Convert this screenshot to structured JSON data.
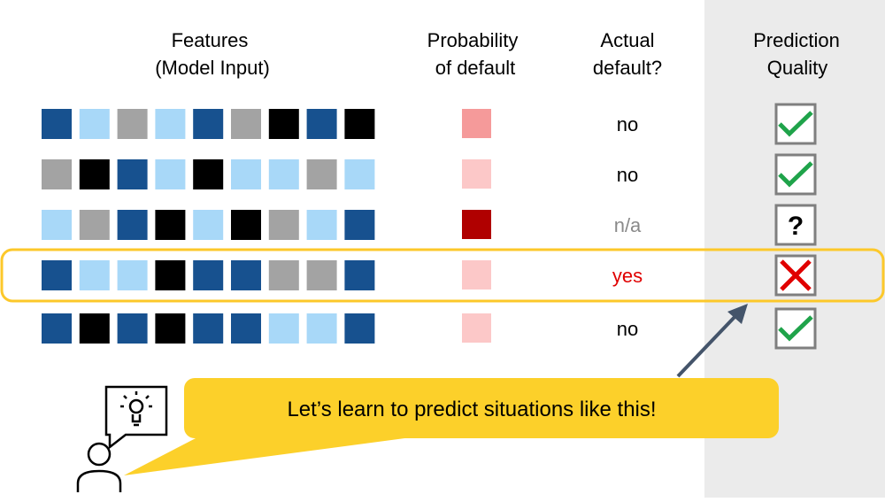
{
  "headers": {
    "features": [
      "Features",
      "(Model Input)"
    ],
    "probability": [
      "Probability",
      "of default"
    ],
    "actual": [
      "Actual",
      "default?"
    ],
    "quality": [
      "Prediction",
      "Quality"
    ]
  },
  "rows": [
    {
      "features": [
        "#17518f",
        "#a8d8f8",
        "#a3a3a3",
        "#a8d8f8",
        "#17518f",
        "#a3a3a3",
        "#000000",
        "#17518f",
        "#000000"
      ],
      "probability_color": "#f59a9a",
      "actual": "no",
      "actual_color": "#000000",
      "quality": "check"
    },
    {
      "features": [
        "#a3a3a3",
        "#000000",
        "#17518f",
        "#a8d8f8",
        "#000000",
        "#a8d8f8",
        "#a8d8f8",
        "#a3a3a3",
        "#a8d8f8"
      ],
      "probability_color": "#fcc8c8",
      "actual": "no",
      "actual_color": "#000000",
      "quality": "check"
    },
    {
      "features": [
        "#a8d8f8",
        "#a3a3a3",
        "#17518f",
        "#000000",
        "#a8d8f8",
        "#000000",
        "#a3a3a3",
        "#a8d8f8",
        "#17518f"
      ],
      "probability_color": "#b00000",
      "actual": "n/a",
      "actual_color": "#8a8a8a",
      "quality": "?"
    },
    {
      "features": [
        "#17518f",
        "#a8d8f8",
        "#a8d8f8",
        "#000000",
        "#17518f",
        "#17518f",
        "#a3a3a3",
        "#a3a3a3",
        "#17518f"
      ],
      "probability_color": "#fcc8c8",
      "actual": "yes",
      "actual_color": "#e00000",
      "quality": "cross",
      "highlight": true
    },
    {
      "features": [
        "#17518f",
        "#000000",
        "#17518f",
        "#000000",
        "#17518f",
        "#17518f",
        "#a8d8f8",
        "#a8d8f8",
        "#17518f"
      ],
      "probability_color": "#fcc8c8",
      "actual": "no",
      "actual_color": "#000000",
      "quality": "check"
    }
  ],
  "callout": "Let’s learn to predict situations like this!"
}
